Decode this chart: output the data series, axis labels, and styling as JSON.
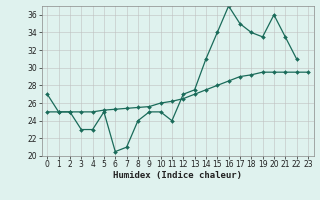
{
  "xlabel": "Humidex (Indice chaleur)",
  "x": [
    0,
    1,
    2,
    3,
    4,
    5,
    6,
    7,
    8,
    9,
    10,
    11,
    12,
    13,
    14,
    15,
    16,
    17,
    18,
    19,
    20,
    21,
    22,
    23
  ],
  "line_jagged": [
    27,
    25,
    25,
    23,
    23,
    25,
    20.5,
    21,
    24,
    25,
    25,
    24,
    27,
    27.5,
    31,
    34,
    37,
    35,
    34,
    33.5,
    36,
    33.5,
    31,
    null
  ],
  "line_trend": [
    25,
    25,
    25,
    25,
    25,
    25.2,
    25.3,
    25.4,
    25.5,
    25.6,
    26,
    26.2,
    26.5,
    27,
    27.5,
    28,
    28.5,
    29,
    29.2,
    29.5,
    29.5,
    29.5,
    29.5,
    29.5
  ],
  "ylim": [
    20,
    37
  ],
  "xlim": [
    -0.5,
    23.5
  ],
  "yticks": [
    20,
    22,
    24,
    26,
    28,
    30,
    32,
    34,
    36
  ],
  "xticks": [
    0,
    1,
    2,
    3,
    4,
    5,
    6,
    7,
    8,
    9,
    10,
    11,
    12,
    13,
    14,
    15,
    16,
    17,
    18,
    19,
    20,
    21,
    22,
    23
  ],
  "line_color": "#1a6b5a",
  "bg_color": "#dff2ee",
  "grid_color": "#c0c0c0",
  "font_color": "#222222",
  "tick_fontsize": 5.5,
  "xlabel_fontsize": 6.5
}
